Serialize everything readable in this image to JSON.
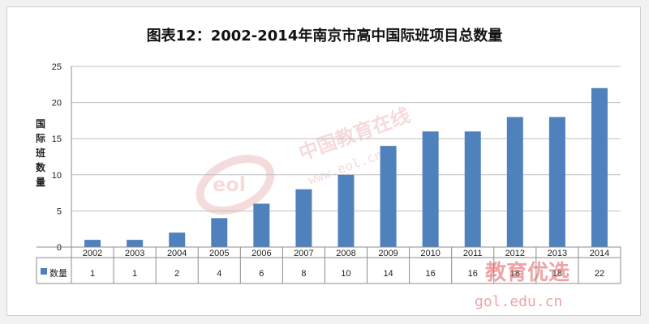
{
  "title": "图表12：2002-2014年南京市高中国际班项目总数量",
  "chart_data": {
    "type": "bar",
    "categories": [
      "2002",
      "2003",
      "2004",
      "2005",
      "2006",
      "2007",
      "2008",
      "2009",
      "2010",
      "2011",
      "2012",
      "2013",
      "2014"
    ],
    "series": [
      {
        "name": "数量",
        "values": [
          1,
          1,
          2,
          4,
          6,
          8,
          10,
          14,
          16,
          16,
          18,
          18,
          22
        ]
      }
    ],
    "ylabel": "国际班数量",
    "ylim": [
      0,
      25
    ],
    "yticks": [
      0,
      5,
      10,
      15,
      20,
      25
    ],
    "grid": true,
    "legend": "data-table",
    "bar_color": "#4f81bd"
  },
  "watermarks": {
    "center_brand": "中国教育在线",
    "center_url": "www.eol.cn",
    "center_logo": "eol",
    "corner_brand": "教育优选",
    "corner_url": "gol.edu.cn"
  }
}
